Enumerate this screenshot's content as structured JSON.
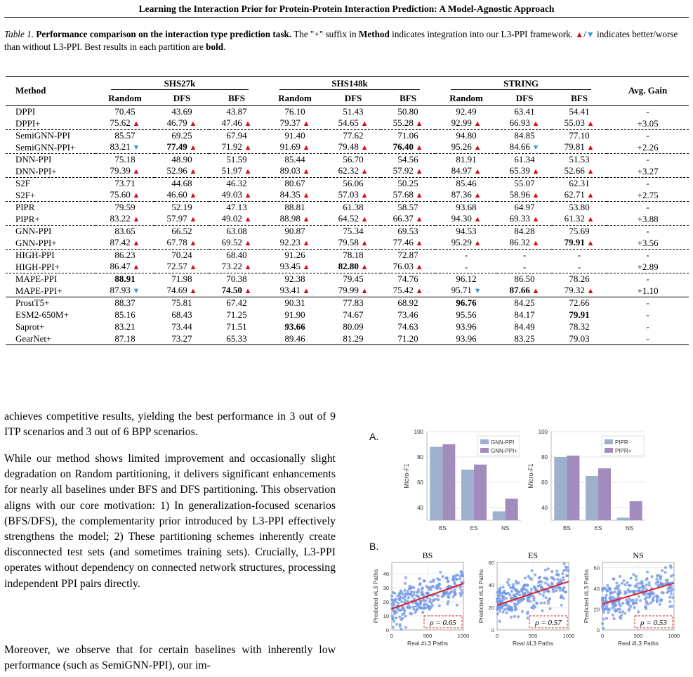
{
  "header": {
    "title": "Learning the Interaction Prior for Protein-Protein Interaction Prediction: A Model-Agnostic Approach"
  },
  "caption": {
    "label": "Table 1.",
    "bold": "Performance comparison on the interaction type prediction task.",
    "t1": " The \"+\" suffix in ",
    "method": "Method",
    "t2": " indicates integration into our L3-PPI framework. ",
    "slash": "/",
    "t3": " indicates better/worse than without L3-PPI. Best results in each partition are ",
    "boldword": "bold",
    "t4": "."
  },
  "table": {
    "method_label": "Method",
    "avg_label": "Avg. Gain",
    "groups": [
      "SHS27k",
      "SHS148k",
      "STRING"
    ],
    "subcols": [
      "Random",
      "DFS",
      "BFS"
    ],
    "rows": [
      {
        "m": "DPPI",
        "c": [
          [
            "70.45",
            ""
          ],
          [
            "43.69",
            ""
          ],
          [
            "43.87",
            ""
          ],
          [
            "76.10",
            ""
          ],
          [
            "51.43",
            ""
          ],
          [
            "50.80",
            ""
          ],
          [
            "92.49",
            ""
          ],
          [
            "63.41",
            ""
          ],
          [
            "54.41",
            ""
          ]
        ],
        "g": "-",
        "sep": "mid"
      },
      {
        "m": "DPPI+",
        "c": [
          [
            "75.62",
            "u"
          ],
          [
            "46.79",
            "u"
          ],
          [
            "47.46",
            "u"
          ],
          [
            "79.37",
            "u"
          ],
          [
            "54.65",
            "u"
          ],
          [
            "55.28",
            "u"
          ],
          [
            "92.99",
            "u"
          ],
          [
            "66.93",
            "u"
          ],
          [
            "55.03",
            "u"
          ]
        ],
        "g": "+3.05"
      },
      {
        "m": "SemiGNN-PPI",
        "c": [
          [
            "85.57",
            ""
          ],
          [
            "69.25",
            ""
          ],
          [
            "67.94",
            ""
          ],
          [
            "91.40",
            ""
          ],
          [
            "77.62",
            ""
          ],
          [
            "71.06",
            ""
          ],
          [
            "94.80",
            ""
          ],
          [
            "84.85",
            ""
          ],
          [
            "77.10",
            ""
          ]
        ],
        "g": "-",
        "sep": "dash"
      },
      {
        "m": "SemiGNN-PPI+",
        "c": [
          [
            "83.21",
            "d"
          ],
          [
            "77.49",
            "ub"
          ],
          [
            "71.92",
            "u"
          ],
          [
            "91.69",
            "u"
          ],
          [
            "79.48",
            "u"
          ],
          [
            "76.40",
            "ub"
          ],
          [
            "95.26",
            "u"
          ],
          [
            "84.66",
            "d"
          ],
          [
            "79.81",
            "u"
          ]
        ],
        "g": "+2.26"
      },
      {
        "m": "DNN-PPI",
        "c": [
          [
            "75.18",
            ""
          ],
          [
            "48.90",
            ""
          ],
          [
            "51.59",
            ""
          ],
          [
            "85.44",
            ""
          ],
          [
            "56.70",
            ""
          ],
          [
            "54.56",
            ""
          ],
          [
            "81.91",
            ""
          ],
          [
            "61.34",
            ""
          ],
          [
            "51.53",
            ""
          ]
        ],
        "g": "-",
        "sep": "dash"
      },
      {
        "m": "DNN-PPI+",
        "c": [
          [
            "79.39",
            "u"
          ],
          [
            "52.96",
            "u"
          ],
          [
            "51.97",
            "u"
          ],
          [
            "89.03",
            "u"
          ],
          [
            "62.32",
            "u"
          ],
          [
            "57.92",
            "u"
          ],
          [
            "84.97",
            "u"
          ],
          [
            "65.39",
            "u"
          ],
          [
            "52.66",
            "u"
          ]
        ],
        "g": "+3.27"
      },
      {
        "m": "S2F",
        "c": [
          [
            "73.71",
            ""
          ],
          [
            "44.68",
            ""
          ],
          [
            "46.32",
            ""
          ],
          [
            "80.67",
            ""
          ],
          [
            "56.06",
            ""
          ],
          [
            "50.25",
            ""
          ],
          [
            "85.46",
            ""
          ],
          [
            "55.07",
            ""
          ],
          [
            "62.31",
            ""
          ]
        ],
        "g": "-",
        "sep": "dash"
      },
      {
        "m": "S2F+",
        "c": [
          [
            "75.60",
            "u"
          ],
          [
            "46.60",
            "u"
          ],
          [
            "49.03",
            "u"
          ],
          [
            "84.35",
            "u"
          ],
          [
            "57.03",
            "u"
          ],
          [
            "57.68",
            "u"
          ],
          [
            "87.36",
            "u"
          ],
          [
            "58.96",
            "u"
          ],
          [
            "62.71",
            "u"
          ]
        ],
        "g": "+2.75"
      },
      {
        "m": "PIPR",
        "c": [
          [
            "79.59",
            ""
          ],
          [
            "52.19",
            ""
          ],
          [
            "47.13",
            ""
          ],
          [
            "88.81",
            ""
          ],
          [
            "61.38",
            ""
          ],
          [
            "58.57",
            ""
          ],
          [
            "93.68",
            ""
          ],
          [
            "64.97",
            ""
          ],
          [
            "53.80",
            ""
          ]
        ],
        "g": "-",
        "sep": "dash"
      },
      {
        "m": "PIPR+",
        "c": [
          [
            "83.22",
            "u"
          ],
          [
            "57.97",
            "u"
          ],
          [
            "49.02",
            "u"
          ],
          [
            "88.98",
            "u"
          ],
          [
            "64.52",
            "u"
          ],
          [
            "66.37",
            "u"
          ],
          [
            "94.30",
            "u"
          ],
          [
            "69.33",
            "u"
          ],
          [
            "61.32",
            "u"
          ]
        ],
        "g": "+3.88"
      },
      {
        "m": "GNN-PPI",
        "c": [
          [
            "83.65",
            ""
          ],
          [
            "66.52",
            ""
          ],
          [
            "63.08",
            ""
          ],
          [
            "90.87",
            ""
          ],
          [
            "75.34",
            ""
          ],
          [
            "69.53",
            ""
          ],
          [
            "94.53",
            ""
          ],
          [
            "84.28",
            ""
          ],
          [
            "75.69",
            ""
          ]
        ],
        "g": "-",
        "sep": "dash"
      },
      {
        "m": "GNN-PPI+",
        "c": [
          [
            "87.42",
            "u"
          ],
          [
            "67.78",
            "u"
          ],
          [
            "69.52",
            "u"
          ],
          [
            "92.23",
            "u"
          ],
          [
            "79.58",
            "u"
          ],
          [
            "77.46",
            "u"
          ],
          [
            "95.29",
            "u"
          ],
          [
            "86.32",
            "u"
          ],
          [
            "79.91",
            "ub"
          ]
        ],
        "g": "+3.56"
      },
      {
        "m": "HIGH-PPI",
        "c": [
          [
            "86.23",
            ""
          ],
          [
            "70.24",
            ""
          ],
          [
            "68.40",
            ""
          ],
          [
            "91.26",
            ""
          ],
          [
            "78.18",
            ""
          ],
          [
            "72.87",
            ""
          ],
          [
            "-",
            ""
          ],
          [
            "-",
            ""
          ],
          [
            "-",
            ""
          ]
        ],
        "g": "-",
        "sep": "dash"
      },
      {
        "m": "HIGH-PPI+",
        "c": [
          [
            "86.47",
            "u"
          ],
          [
            "72.57",
            "u"
          ],
          [
            "73.22",
            "u"
          ],
          [
            "93.45",
            "u"
          ],
          [
            "82.80",
            "ub"
          ],
          [
            "76.03",
            "u"
          ],
          [
            "-",
            ""
          ],
          [
            "-",
            ""
          ],
          [
            "-",
            ""
          ]
        ],
        "g": "+2.89"
      },
      {
        "m": "MAPE-PPI",
        "c": [
          [
            "88.91",
            "b"
          ],
          [
            "71.98",
            ""
          ],
          [
            "70.38",
            ""
          ],
          [
            "92.38",
            ""
          ],
          [
            "79.45",
            ""
          ],
          [
            "74.76",
            ""
          ],
          [
            "96.12",
            ""
          ],
          [
            "86.50",
            ""
          ],
          [
            "78.26",
            ""
          ]
        ],
        "g": "-",
        "sep": "dash"
      },
      {
        "m": "MAPE-PPI+",
        "c": [
          [
            "87.93",
            "d"
          ],
          [
            "74.69",
            "u"
          ],
          [
            "74.50",
            "ub"
          ],
          [
            "93.41",
            "u"
          ],
          [
            "79.99",
            "u"
          ],
          [
            "75.42",
            "u"
          ],
          [
            "95.71",
            "d"
          ],
          [
            "87.66",
            "ub"
          ],
          [
            "79.32",
            "u"
          ]
        ],
        "g": "+1.10"
      },
      {
        "m": "ProstT5+",
        "c": [
          [
            "88.37",
            ""
          ],
          [
            "75.81",
            ""
          ],
          [
            "67.42",
            ""
          ],
          [
            "90.31",
            ""
          ],
          [
            "77.83",
            ""
          ],
          [
            "68.92",
            ""
          ],
          [
            "96.76",
            "b"
          ],
          [
            "84.25",
            ""
          ],
          [
            "72.66",
            ""
          ]
        ],
        "g": "-",
        "sep": "mid"
      },
      {
        "m": "ESM2-650M+",
        "c": [
          [
            "85.16",
            ""
          ],
          [
            "68.43",
            ""
          ],
          [
            "71.25",
            ""
          ],
          [
            "91.90",
            ""
          ],
          [
            "74.67",
            ""
          ],
          [
            "73.46",
            ""
          ],
          [
            "95.56",
            ""
          ],
          [
            "84.17",
            ""
          ],
          [
            "79.91",
            "b"
          ]
        ],
        "g": "-"
      },
      {
        "m": "Saprot+",
        "c": [
          [
            "83.21",
            ""
          ],
          [
            "73.44",
            ""
          ],
          [
            "71.51",
            ""
          ],
          [
            "93.66",
            "b"
          ],
          [
            "80.09",
            ""
          ],
          [
            "74.63",
            ""
          ],
          [
            "93.96",
            ""
          ],
          [
            "84.49",
            ""
          ],
          [
            "78.32",
            ""
          ]
        ],
        "g": "-"
      },
      {
        "m": "GearNet+",
        "c": [
          [
            "87.18",
            ""
          ],
          [
            "73.27",
            ""
          ],
          [
            "65.33",
            ""
          ],
          [
            "89.46",
            ""
          ],
          [
            "81.29",
            ""
          ],
          [
            "71.20",
            ""
          ],
          [
            "93.96",
            ""
          ],
          [
            "83.25",
            ""
          ],
          [
            "79.03",
            ""
          ]
        ],
        "g": "-",
        "sep": "bot"
      }
    ]
  },
  "body": {
    "p1": "achieves competitive results, yielding the best performance in 3 out of 9 ITP scenarios and 3 out of 6 BPP scenarios.",
    "p2": "While our method shows limited improvement and occasionally slight degradation on Random partitioning, it delivers significant enhancements for nearly all baselines under BFS and DFS partitioning. This observation aligns with our core motivation: 1) In generalization-focused scenarios (BFS/DFS), the complementarity prior introduced by L3-PPI effectively strengthens the model; 2) These partitioning schemes inherently create disconnected test sets (and sometimes training sets). Crucially, L3-PPI operates without dependency on connected network structures, processing independent PPI pairs directly.",
    "p3": "Moreover, we observe that for certain baselines with inherently low performance (such as SemiGNN-PPI), our im-"
  },
  "figure": {
    "panel_a": "A.",
    "panel_b": "B.",
    "colors": {
      "base": "#9db1cf",
      "plus": "#a28cbe",
      "scatter": "#6f96e6",
      "fit": "#e0202a"
    },
    "chart_data": [
      {
        "type": "bar",
        "categories": [
          "BS",
          "ES",
          "NS"
        ],
        "ylabel": "Micro-F1",
        "ylim": [
          30,
          100
        ],
        "yticks": [
          40,
          60,
          80,
          100
        ],
        "series": [
          {
            "name": "GNN-PPI",
            "values": [
              88,
              70,
              37
            ]
          },
          {
            "name": "GNN-PPI+",
            "values": [
              90,
              74,
              47
            ]
          }
        ],
        "legend": "top-right"
      },
      {
        "type": "bar",
        "categories": [
          "BS",
          "ES",
          "NS"
        ],
        "ylabel": "Micro-F1",
        "ylim": [
          30,
          100
        ],
        "yticks": [
          40,
          60,
          80,
          100
        ],
        "series": [
          {
            "name": "PIPR",
            "values": [
              80,
              65,
              32
            ]
          },
          {
            "name": "PIPR+",
            "values": [
              81,
              71,
              45
            ]
          }
        ],
        "legend": "top-right"
      },
      {
        "type": "scatter",
        "title": "BS",
        "xlabel": "Real #L3 Paths",
        "ylabel": "Predicted #L3 Paths",
        "xlim": [
          0,
          1000
        ],
        "ylim": [
          0,
          48
        ],
        "xticks": [
          0,
          500,
          1000
        ],
        "yticks": [
          0,
          10,
          20,
          30,
          40
        ],
        "fit": [
          15,
          33
        ],
        "rho": "ρ = 0.65"
      },
      {
        "type": "scatter",
        "title": "ES",
        "xlabel": "Real #L3 Paths",
        "ylabel": "Predicted #L3 Paths",
        "xlim": [
          0,
          1000
        ],
        "ylim": [
          0,
          60
        ],
        "xticks": [
          0,
          500,
          1000
        ],
        "yticks": [
          0,
          20,
          40,
          60
        ],
        "fit": [
          22,
          43
        ],
        "rho": "ρ = 0.57"
      },
      {
        "type": "scatter",
        "title": "NS",
        "xlabel": "Real #L3 Paths",
        "ylabel": "Predicted #L3 Paths",
        "xlim": [
          0,
          1000
        ],
        "ylim": [
          0,
          65
        ],
        "xticks": [
          0,
          500,
          1000
        ],
        "yticks": [
          0,
          20,
          40,
          60
        ],
        "fit": [
          25,
          45
        ],
        "rho": "ρ = 0.53"
      }
    ]
  }
}
